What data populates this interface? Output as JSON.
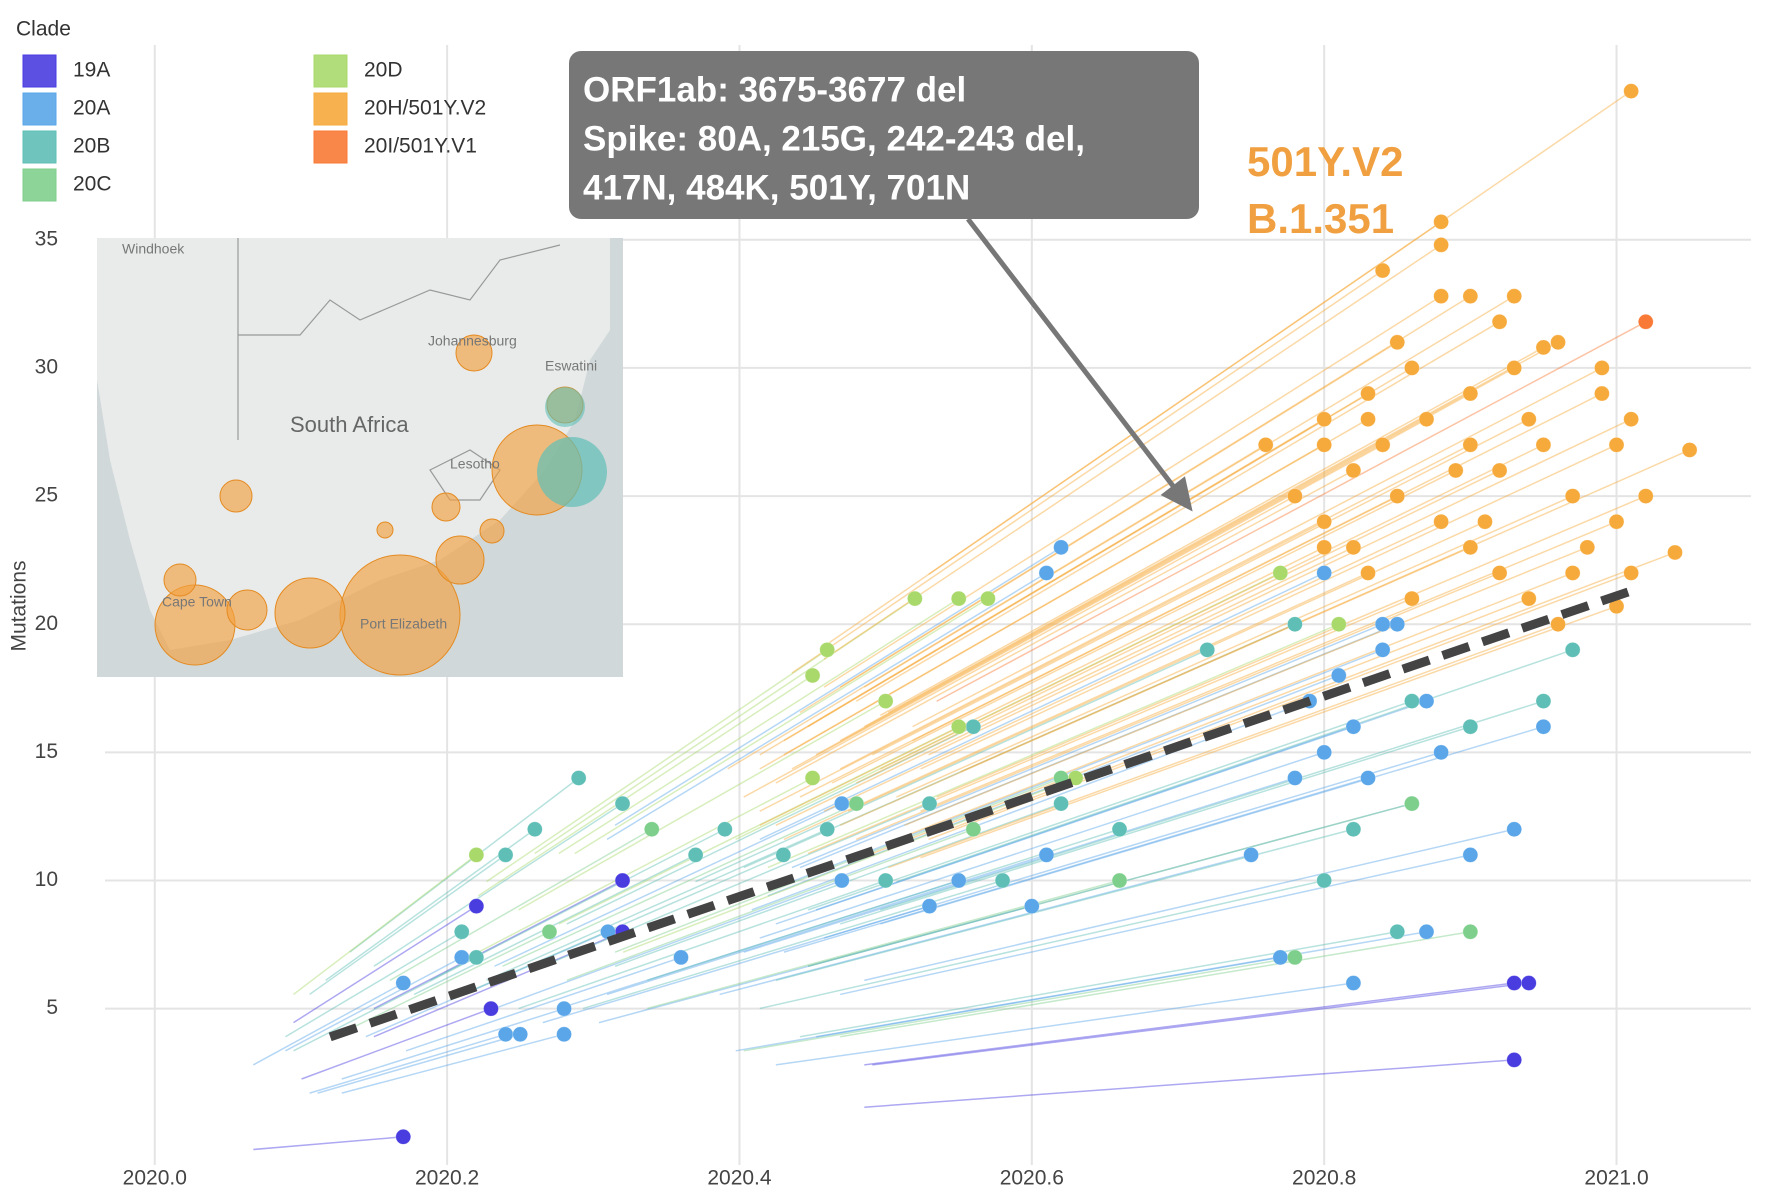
{
  "chart_data": {
    "type": "scatter",
    "legend_title": "Clade",
    "ylabel": "Mutations",
    "xlim": [
      2019.942,
      2021.092
    ],
    "ylim": [
      -1.1,
      42.6
    ],
    "xticks": [
      {
        "value": 2020,
        "label": "2020.0"
      },
      2020.2,
      2020.4,
      2020.6,
      2020.8,
      {
        "value": 2021,
        "label": "2021.0"
      }
    ],
    "yticks": [
      5,
      10,
      15,
      20,
      25,
      30,
      35
    ],
    "grid": true,
    "series": [
      {
        "name": "19A",
        "color": "#4a3de0",
        "x": [
          2020.17,
          2020.23,
          2020.22,
          2020.32,
          2020.32,
          2020.93,
          2020.94,
          2020.93
        ],
        "y": [
          0,
          5,
          9,
          10,
          8,
          6,
          6,
          3
        ]
      },
      {
        "name": "20A",
        "color": "#5aa6e8",
        "x": [
          2020.17,
          2020.21,
          2020.24,
          2020.25,
          2020.28,
          2020.28,
          2020.31,
          2020.36,
          2020.47,
          2020.47,
          2020.53,
          2020.55,
          2020.6,
          2020.61,
          2020.62,
          2020.61,
          2020.75,
          2020.78,
          2020.79,
          2020.8,
          2020.81,
          2020.82,
          2020.83,
          2020.84,
          2020.85,
          2020.86,
          2020.87,
          2020.88,
          2020.9,
          2020.93,
          2020.95,
          2020.8,
          2020.77,
          2020.82,
          2020.84,
          2020.87
        ],
        "y": [
          6,
          7,
          4,
          4,
          5,
          4,
          8,
          7,
          10,
          13,
          9,
          10,
          9,
          11,
          23,
          22,
          11,
          14,
          17,
          15,
          18,
          16,
          14,
          19,
          20,
          13,
          17,
          15,
          11,
          12,
          16,
          22,
          7,
          6,
          20,
          8
        ]
      },
      {
        "name": "20B",
        "color": "#5fbfb6",
        "x": [
          2020.21,
          2020.22,
          2020.24,
          2020.26,
          2020.29,
          2020.32,
          2020.37,
          2020.39,
          2020.43,
          2020.46,
          2020.5,
          2020.53,
          2020.56,
          2020.58,
          2020.62,
          2020.66,
          2020.72,
          2020.78,
          2020.82,
          2020.86,
          2020.9,
          2020.95,
          2020.97,
          2020.8,
          2020.85
        ],
        "y": [
          8,
          7,
          11,
          12,
          14,
          13,
          11,
          12,
          11,
          12,
          10,
          13,
          16,
          10,
          13,
          12,
          19,
          20,
          12,
          17,
          16,
          17,
          19,
          10,
          8
        ]
      },
      {
        "name": "20C",
        "color": "#7fcf8c",
        "x": [
          2020.27,
          2020.34,
          2020.48,
          2020.56,
          2020.66,
          2020.78,
          2020.86,
          2020.9,
          2020.62
        ],
        "y": [
          8,
          12,
          13,
          12,
          10,
          7,
          13,
          8,
          14
        ]
      },
      {
        "name": "20D",
        "color": "#a9d96b",
        "x": [
          2020.22,
          2020.45,
          2020.45,
          2020.46,
          2020.5,
          2020.52,
          2020.55,
          2020.57,
          2020.55,
          2020.63,
          2020.77,
          2020.81
        ],
        "y": [
          11,
          14,
          18,
          19,
          17,
          21,
          21,
          21,
          16,
          14,
          22,
          20
        ]
      },
      {
        "name": "20H/501Y.V2",
        "color": "#f6aa3c",
        "x": [
          2020.76,
          2020.8,
          2020.83,
          2020.85,
          2020.84,
          2020.88,
          2020.88,
          2020.88,
          2020.9,
          2020.93,
          2020.92,
          2020.95,
          2021.01,
          2021.05,
          2021.04,
          2021.0,
          2020.8,
          2020.82,
          2020.85,
          2020.88,
          2020.9,
          2020.92,
          2020.94,
          2020.96,
          2020.98,
          2021.0,
          2020.83,
          2020.86,
          2020.8,
          2020.82,
          2020.87,
          2020.9,
          2020.93,
          2020.96,
          2020.99,
          2021.0,
          2020.95,
          2020.92,
          2020.97,
          2020.89,
          2020.84,
          2020.78,
          2020.8,
          2021.02,
          2021.01,
          2020.94,
          2020.91,
          2020.86,
          2020.99,
          2020.9,
          2020.97,
          2020.83,
          2021.01
        ],
        "y": [
          27,
          28,
          29,
          31,
          33.8,
          35.7,
          34.8,
          32.8,
          32.8,
          32.8,
          31.8,
          30.8,
          40.8,
          26.8,
          22.8,
          20.7,
          27,
          26,
          25,
          24,
          23,
          22,
          21,
          20,
          23,
          24,
          22,
          21,
          24,
          23,
          28,
          29,
          30,
          31,
          29,
          27,
          27,
          26,
          25,
          26,
          27,
          25,
          23,
          25,
          22,
          28,
          24,
          30,
          30,
          27,
          22,
          28,
          28
        ]
      },
      {
        "name": "20I/501Y.V1",
        "color": "#f97a36",
        "x": [
          2021.02
        ],
        "y": [
          31.8
        ]
      }
    ],
    "trend": {
      "x": [
        2020.12,
        2021.01
      ],
      "y": [
        3.9,
        21.3
      ]
    },
    "annotation": {
      "lines": [
        "ORF1ab: 3675-3677 del",
        "Spike: 80A, 215G, 242-243 del,",
        "417N, 484K, 501Y, 701N"
      ],
      "target": {
        "x": 2020.71,
        "y": 24.4
      }
    },
    "label": [
      "501Y.V2",
      "B.1.351"
    ],
    "map_inset": {
      "labels": [
        "Windhoek",
        "Johannesburg",
        "Eswatini",
        "South Africa",
        "Lesotho",
        "Cape Town",
        "Port Elizabeth"
      ]
    }
  }
}
